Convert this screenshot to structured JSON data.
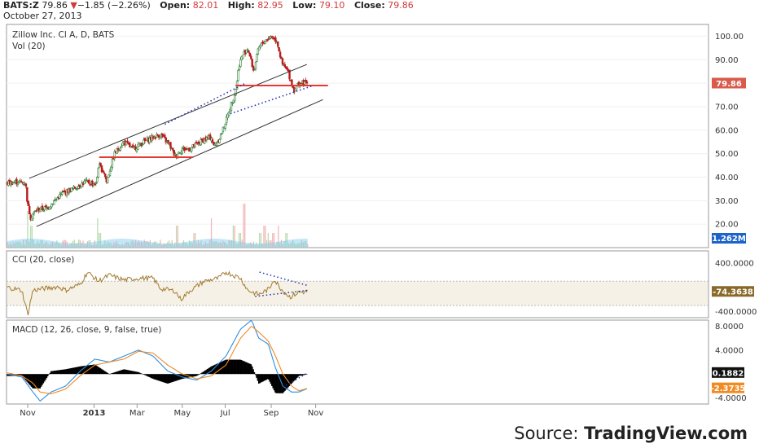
{
  "header": {
    "symbol": "BATS:Z",
    "last": "79.86",
    "down_arrow": "▼",
    "change": "−1.85 (−2.26%)",
    "open_label": "Open:",
    "open": "82.01",
    "high_label": "High:",
    "high": "82.95",
    "low_label": "Low:",
    "low": "79.10",
    "close_label": "Close:",
    "close": "79.86",
    "date": "October 27, 2013"
  },
  "source": {
    "prefix": "Source: ",
    "brand": "TradingView.com"
  },
  "colors": {
    "up": "#2e7d32",
    "down": "#b71c1c",
    "red_line": "#e53935",
    "dots": "#1f2fb0",
    "cci": "#a07a2e",
    "macd": "#2f8fe0",
    "signal": "#f08a24",
    "vol": "#7ec8f0"
  },
  "chart_data": [
    {
      "type": "candlestick",
      "title": "Zillow Inc. Cl A, D, BATS",
      "subtitle": "Vol (20)",
      "ylim": [
        10,
        105
      ],
      "y_ticks": [
        "100.00",
        "90.00",
        "80.00",
        "70.00",
        "60.00",
        "50.00",
        "40.00",
        "30.00",
        "20.00"
      ],
      "y_tick_values": [
        100,
        90,
        80,
        70,
        60,
        50,
        40,
        30,
        20
      ],
      "x_labels": [
        "Nov",
        "2013",
        "Mar",
        "May",
        "Jul",
        "Sep",
        "Nov"
      ],
      "x_label_days": [
        28,
        119,
        178,
        240,
        299,
        362,
        423
      ],
      "price_badge": "79.86",
      "vol_badge": "1.262M",
      "price_path": [
        [
          0,
          37.5
        ],
        [
          13,
          38
        ],
        [
          25,
          37.5
        ],
        [
          28,
          28
        ],
        [
          32,
          23
        ],
        [
          40,
          26
        ],
        [
          55,
          27
        ],
        [
          75,
          33
        ],
        [
          90,
          35
        ],
        [
          107,
          38
        ],
        [
          122,
          37
        ],
        [
          125,
          45
        ],
        [
          133,
          42
        ],
        [
          136,
          38
        ],
        [
          147,
          50
        ],
        [
          160,
          55
        ],
        [
          172,
          52
        ],
        [
          187,
          55
        ],
        [
          200,
          57
        ],
        [
          210,
          58
        ],
        [
          222,
          54
        ],
        [
          230,
          49
        ],
        [
          240,
          52
        ],
        [
          250,
          52
        ],
        [
          260,
          54
        ],
        [
          270,
          56
        ],
        [
          280,
          57
        ],
        [
          283,
          53
        ],
        [
          292,
          57
        ],
        [
          300,
          64
        ],
        [
          308,
          72
        ],
        [
          313,
          76
        ],
        [
          318,
          88
        ],
        [
          323,
          92
        ],
        [
          330,
          95
        ],
        [
          338,
          85
        ],
        [
          345,
          95
        ],
        [
          353,
          98
        ],
        [
          362,
          100
        ],
        [
          370,
          98
        ],
        [
          377,
          88
        ],
        [
          385,
          85
        ],
        [
          393,
          77
        ],
        [
          400,
          80
        ],
        [
          408,
          80
        ],
        [
          412,
          79.9
        ]
      ],
      "vol_bursts": [
        [
          28,
          5
        ],
        [
          33,
          3
        ],
        [
          124,
          4
        ],
        [
          127,
          2
        ],
        [
          233,
          3
        ],
        [
          257,
          2
        ],
        [
          280,
          4
        ],
        [
          311,
          3
        ],
        [
          319,
          2
        ],
        [
          325,
          6
        ],
        [
          347,
          2
        ],
        [
          353,
          3
        ],
        [
          358,
          2
        ],
        [
          365,
          2
        ],
        [
          372,
          3
        ],
        [
          383,
          2
        ]
      ],
      "trend_channel": {
        "upper": [
          [
            30,
            39.5
          ],
          [
            411,
            88
          ]
        ],
        "lower": [
          [
            40,
            19
          ],
          [
            433,
            73
          ]
        ]
      },
      "red_lines": [
        [
          [
            126,
            48.5
          ],
          [
            255,
            48.5
          ]
        ],
        [
          [
            313,
            79
          ],
          [
            440,
            79
          ]
        ]
      ],
      "dotted_lines": [
        [
          [
            216,
            62.5
          ],
          [
            327,
            80
          ]
        ],
        [
          [
            306,
            67
          ],
          [
            420,
            79
          ]
        ]
      ]
    },
    {
      "type": "line",
      "title": "CCI (20, close)",
      "ylim": [
        -500,
        600
      ],
      "y_ticks": [
        "400.0000",
        "-400.0000"
      ],
      "y_tick_values": [
        400,
        -400
      ],
      "badge": "-74.3638",
      "band": [
        -300,
        100
      ],
      "series": [
        {
          "values_path": [
            [
              0,
              0
            ],
            [
              20,
              -50
            ],
            [
              28,
              -450
            ],
            [
              35,
              -50
            ],
            [
              50,
              -20
            ],
            [
              70,
              10
            ],
            [
              80,
              -50
            ],
            [
              100,
              50
            ],
            [
              110,
              250
            ],
            [
              125,
              100
            ],
            [
              140,
              200
            ],
            [
              160,
              120
            ],
            [
              180,
              150
            ],
            [
              200,
              150
            ],
            [
              210,
              -20
            ],
            [
              230,
              -60
            ],
            [
              238,
              -200
            ],
            [
              250,
              -60
            ],
            [
              270,
              100
            ],
            [
              290,
              150
            ],
            [
              300,
              250
            ],
            [
              320,
              150
            ],
            [
              330,
              -50
            ],
            [
              345,
              -120
            ],
            [
              360,
              -20
            ],
            [
              365,
              140
            ],
            [
              378,
              -60
            ],
            [
              388,
              -160
            ],
            [
              400,
              -80
            ],
            [
              412,
              -74
            ]
          ]
        }
      ],
      "dotted_lines": [
        [
          [
            346,
            250
          ],
          [
            412,
            30
          ]
        ],
        [
          [
            340,
            -150
          ],
          [
            412,
            -50
          ]
        ]
      ]
    },
    {
      "type": "macd",
      "title": "MACD (12, 26, close, 9, false, true)",
      "ylim": [
        -5,
        9
      ],
      "y_ticks": [
        "8.0000",
        "4.0000",
        "-4.0000"
      ],
      "y_tick_values": [
        8,
        4,
        -4
      ],
      "badges": [
        "0.1882",
        "-2.3735"
      ],
      "series": [
        {
          "name": "macd",
          "values_path": [
            [
              0,
              0
            ],
            [
              20,
              -0.5
            ],
            [
              35,
              -3
            ],
            [
              45,
              -4.5
            ],
            [
              60,
              -3
            ],
            [
              80,
              -2
            ],
            [
              100,
              0.5
            ],
            [
              120,
              2.5
            ],
            [
              140,
              2
            ],
            [
              160,
              3
            ],
            [
              180,
              4
            ],
            [
              200,
              3
            ],
            [
              220,
              0.5
            ],
            [
              240,
              -0.5
            ],
            [
              260,
              -1
            ],
            [
              280,
              0.5
            ],
            [
              300,
              3
            ],
            [
              320,
              7.5
            ],
            [
              335,
              9
            ],
            [
              345,
              6
            ],
            [
              358,
              5
            ],
            [
              368,
              1
            ],
            [
              378,
              -2
            ],
            [
              390,
              -3
            ],
            [
              400,
              -3
            ],
            [
              412,
              -2.4
            ]
          ]
        },
        {
          "name": "signal",
          "values_path": [
            [
              0,
              0.2
            ],
            [
              20,
              -0.3
            ],
            [
              35,
              -1.5
            ],
            [
              45,
              -3
            ],
            [
              60,
              -3.3
            ],
            [
              80,
              -2.5
            ],
            [
              100,
              -0.3
            ],
            [
              120,
              1.5
            ],
            [
              140,
              2
            ],
            [
              160,
              2.5
            ],
            [
              180,
              3.8
            ],
            [
              200,
              3.5
            ],
            [
              220,
              1.5
            ],
            [
              240,
              0
            ],
            [
              260,
              -0.8
            ],
            [
              280,
              -0.3
            ],
            [
              300,
              1.5
            ],
            [
              320,
              6
            ],
            [
              335,
              8
            ],
            [
              345,
              7
            ],
            [
              358,
              5.5
            ],
            [
              368,
              3
            ],
            [
              378,
              0
            ],
            [
              390,
              -2
            ],
            [
              400,
              -2.8
            ],
            [
              412,
              -2.37
            ]
          ]
        }
      ]
    }
  ]
}
